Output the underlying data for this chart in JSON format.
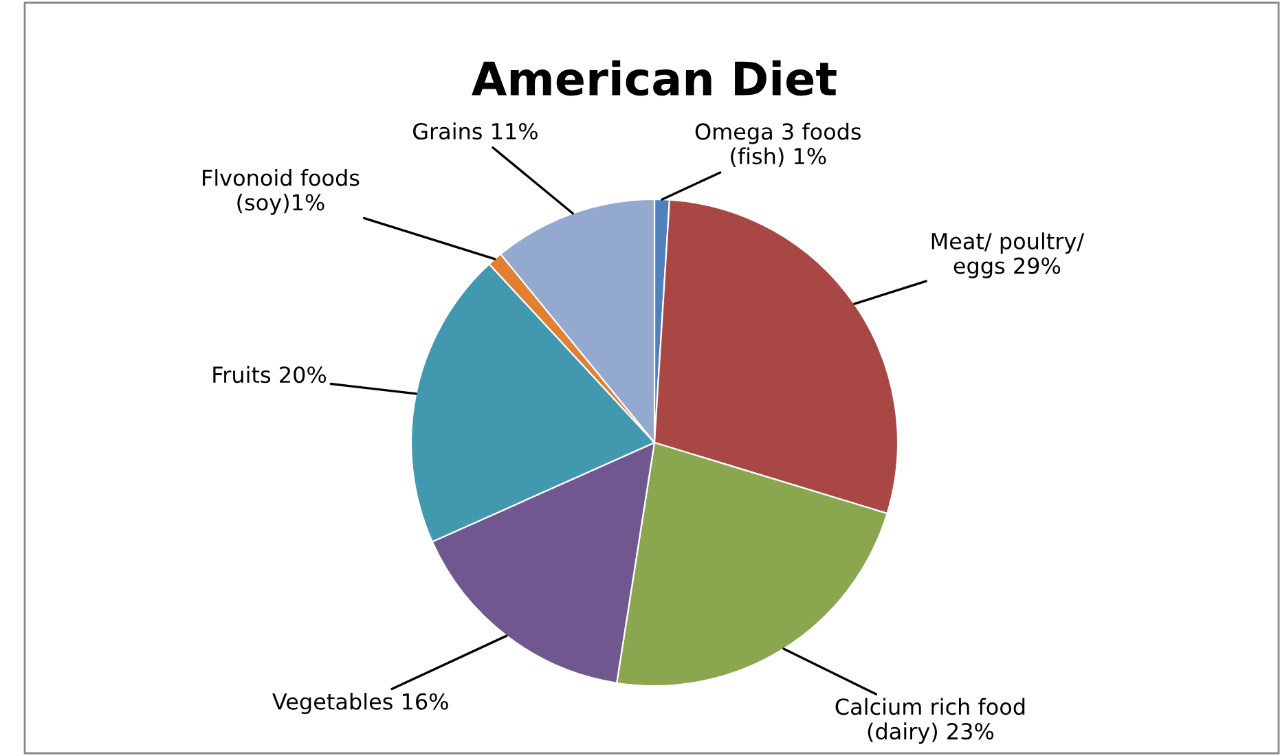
{
  "chart_data": {
    "type": "pie",
    "title": "American Diet",
    "categories": [
      "Omega 3 foods\n(fish) 1%",
      "Meat/ poultry/\neggs 29%",
      "Calcium rich food\n(dairy) 23%",
      "Vegetables 16%",
      "Fruits 20%",
      "Flvonoid foods\n(soy)1%",
      "Grains 11%"
    ],
    "values": [
      1,
      29,
      23,
      16,
      20,
      1,
      11
    ],
    "colors": [
      "#4f81bd",
      "#a94744",
      "#8aa64f",
      "#70578f",
      "#4198af",
      "#e08030",
      "#93a9cf"
    ],
    "legend": false
  }
}
